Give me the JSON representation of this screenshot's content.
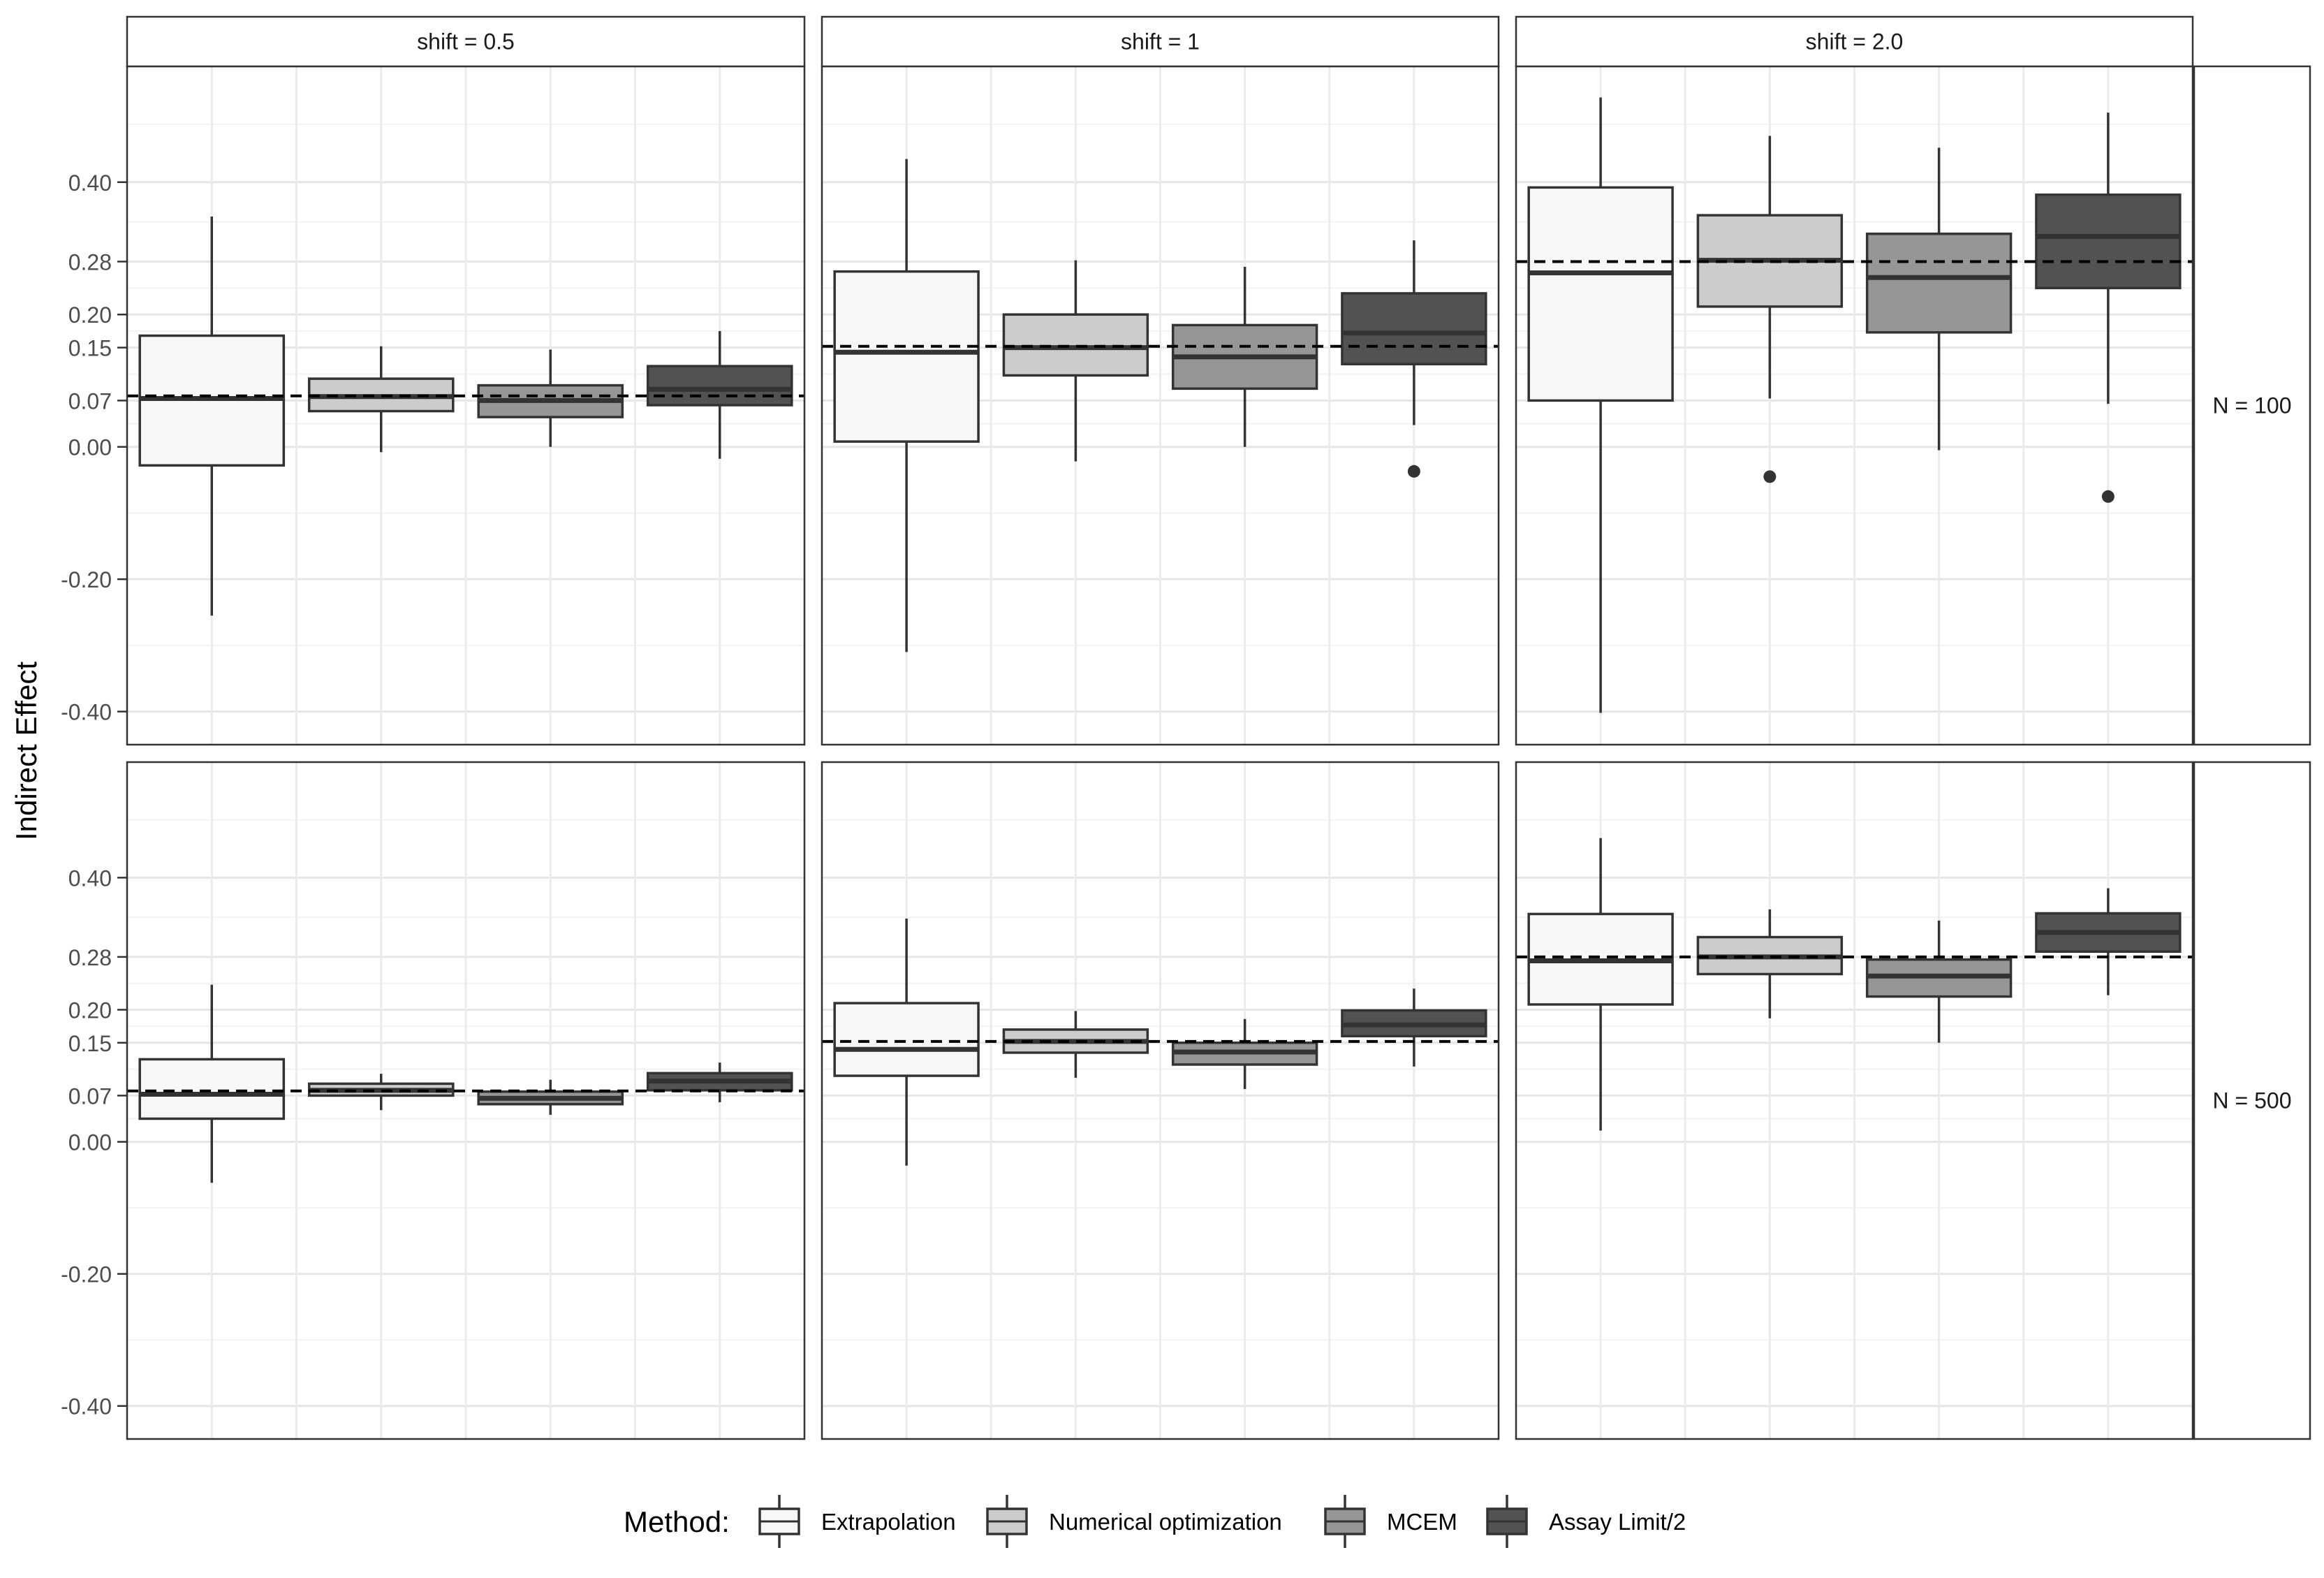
{
  "chart_data": {
    "type": "boxplot",
    "ylabel": "Indirect Effect",
    "y_ticks": [
      -0.4,
      -0.2,
      0.0,
      0.07,
      0.15,
      0.2,
      0.28,
      0.4
    ],
    "y_tick_labels": [
      "-0.40",
      "-0.20",
      "0.00",
      "0.07",
      "0.15",
      "0.20",
      "0.28",
      "0.40"
    ],
    "ylim": [
      -0.45,
      0.575
    ],
    "grid": true,
    "legend": {
      "title": "Method:",
      "position": "bottom",
      "entries": [
        "Extrapolation",
        "Numerical optimization",
        "MCEM",
        "Assay Limit/2"
      ]
    },
    "method_colors": [
      "#f7f7f7",
      "#cccccc",
      "#969696",
      "#525252"
    ],
    "columns": [
      "shift = 0.5",
      "shift = 1",
      "shift = 2.0"
    ],
    "rows": [
      "N = 100",
      "N = 500"
    ],
    "panels": [
      {
        "column": "shift = 0.5",
        "row": "N = 100",
        "reference": 0.077,
        "boxes": [
          {
            "method": "Extrapolation",
            "lower_whisker": -0.255,
            "q1": -0.028,
            "median": 0.073,
            "q3": 0.168,
            "upper_whisker": 0.348,
            "outliers": []
          },
          {
            "method": "Numerical optimization",
            "lower_whisker": -0.008,
            "q1": 0.054,
            "median": 0.076,
            "q3": 0.103,
            "upper_whisker": 0.152,
            "outliers": []
          },
          {
            "method": "MCEM",
            "lower_whisker": 0.0,
            "q1": 0.045,
            "median": 0.07,
            "q3": 0.093,
            "upper_whisker": 0.147,
            "outliers": []
          },
          {
            "method": "Assay Limit/2",
            "lower_whisker": -0.018,
            "q1": 0.063,
            "median": 0.087,
            "q3": 0.122,
            "upper_whisker": 0.175,
            "outliers": []
          }
        ]
      },
      {
        "column": "shift = 1",
        "row": "N = 100",
        "reference": 0.152,
        "boxes": [
          {
            "method": "Extrapolation",
            "lower_whisker": -0.31,
            "q1": 0.008,
            "median": 0.143,
            "q3": 0.265,
            "upper_whisker": 0.435,
            "outliers": []
          },
          {
            "method": "Numerical optimization",
            "lower_whisker": -0.022,
            "q1": 0.108,
            "median": 0.15,
            "q3": 0.2,
            "upper_whisker": 0.282,
            "outliers": []
          },
          {
            "method": "MCEM",
            "lower_whisker": 0.0,
            "q1": 0.088,
            "median": 0.136,
            "q3": 0.184,
            "upper_whisker": 0.272,
            "outliers": []
          },
          {
            "method": "Assay Limit/2",
            "lower_whisker": 0.033,
            "q1": 0.125,
            "median": 0.172,
            "q3": 0.232,
            "upper_whisker": 0.312,
            "outliers": [
              -0.037
            ]
          }
        ]
      },
      {
        "column": "shift = 2.0",
        "row": "N = 100",
        "reference": 0.28,
        "boxes": [
          {
            "method": "Extrapolation",
            "lower_whisker": -0.402,
            "q1": 0.07,
            "median": 0.263,
            "q3": 0.392,
            "upper_whisker": 0.528,
            "outliers": []
          },
          {
            "method": "Numerical optimization",
            "lower_whisker": 0.073,
            "q1": 0.212,
            "median": 0.282,
            "q3": 0.35,
            "upper_whisker": 0.47,
            "outliers": [
              -0.045
            ]
          },
          {
            "method": "MCEM",
            "lower_whisker": -0.005,
            "q1": 0.173,
            "median": 0.256,
            "q3": 0.322,
            "upper_whisker": 0.452,
            "outliers": []
          },
          {
            "method": "Assay Limit/2",
            "lower_whisker": 0.065,
            "q1": 0.24,
            "median": 0.318,
            "q3": 0.381,
            "upper_whisker": 0.505,
            "outliers": [
              -0.075
            ]
          }
        ]
      },
      {
        "column": "shift = 0.5",
        "row": "N = 500",
        "reference": 0.077,
        "boxes": [
          {
            "method": "Extrapolation",
            "lower_whisker": -0.062,
            "q1": 0.035,
            "median": 0.072,
            "q3": 0.125,
            "upper_whisker": 0.238,
            "outliers": []
          },
          {
            "method": "Numerical optimization",
            "lower_whisker": 0.048,
            "q1": 0.07,
            "median": 0.078,
            "q3": 0.088,
            "upper_whisker": 0.103,
            "outliers": []
          },
          {
            "method": "MCEM",
            "lower_whisker": 0.041,
            "q1": 0.057,
            "median": 0.066,
            "q3": 0.076,
            "upper_whisker": 0.094,
            "outliers": []
          },
          {
            "method": "Assay Limit/2",
            "lower_whisker": 0.06,
            "q1": 0.078,
            "median": 0.092,
            "q3": 0.104,
            "upper_whisker": 0.12,
            "outliers": []
          }
        ]
      },
      {
        "column": "shift = 1",
        "row": "N = 500",
        "reference": 0.152,
        "boxes": [
          {
            "method": "Extrapolation",
            "lower_whisker": -0.036,
            "q1": 0.1,
            "median": 0.14,
            "q3": 0.21,
            "upper_whisker": 0.338,
            "outliers": []
          },
          {
            "method": "Numerical optimization",
            "lower_whisker": 0.097,
            "q1": 0.135,
            "median": 0.152,
            "q3": 0.17,
            "upper_whisker": 0.198,
            "outliers": []
          },
          {
            "method": "MCEM",
            "lower_whisker": 0.08,
            "q1": 0.117,
            "median": 0.136,
            "q3": 0.15,
            "upper_whisker": 0.186,
            "outliers": []
          },
          {
            "method": "Assay Limit/2",
            "lower_whisker": 0.114,
            "q1": 0.16,
            "median": 0.177,
            "q3": 0.199,
            "upper_whisker": 0.232,
            "outliers": []
          }
        ]
      },
      {
        "column": "shift = 2.0",
        "row": "N = 500",
        "reference": 0.28,
        "boxes": [
          {
            "method": "Extrapolation",
            "lower_whisker": 0.017,
            "q1": 0.208,
            "median": 0.274,
            "q3": 0.345,
            "upper_whisker": 0.46,
            "outliers": []
          },
          {
            "method": "Numerical optimization",
            "lower_whisker": 0.187,
            "q1": 0.254,
            "median": 0.28,
            "q3": 0.31,
            "upper_whisker": 0.352,
            "outliers": []
          },
          {
            "method": "MCEM",
            "lower_whisker": 0.15,
            "q1": 0.22,
            "median": 0.251,
            "q3": 0.276,
            "upper_whisker": 0.335,
            "outliers": []
          },
          {
            "method": "Assay Limit/2",
            "lower_whisker": 0.222,
            "q1": 0.288,
            "median": 0.317,
            "q3": 0.346,
            "upper_whisker": 0.384,
            "outliers": []
          }
        ]
      }
    ]
  }
}
